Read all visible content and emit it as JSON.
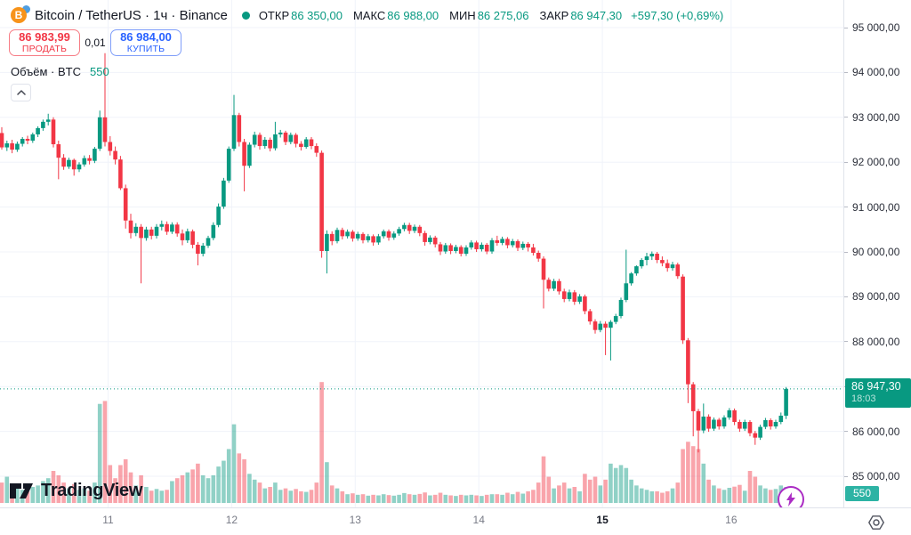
{
  "header": {
    "symbol_title": "Bitcoin / TetherUS · 1ч · Binance",
    "ohlc": {
      "open_label": "ОТКР",
      "open": "86 350,00",
      "high_label": "МАКС",
      "high": "86 988,00",
      "low_label": "МИН",
      "low": "86 275,06",
      "close_label": "ЗАКР",
      "close": "86 947,30",
      "change": "+597,30 (+0,69%)"
    },
    "sell_button": {
      "price": "86 983,99",
      "label": "ПРОДАТЬ"
    },
    "spread": "0,01",
    "buy_button": {
      "price": "86 984,00",
      "label": "КУПИТЬ"
    },
    "volume_row": {
      "label": "Объём · BTC",
      "value": "550"
    }
  },
  "watermark": "TradingView",
  "price_axis": {
    "labels": [
      {
        "text": "95 000,00",
        "price": 95000
      },
      {
        "text": "94 000,00",
        "price": 94000
      },
      {
        "text": "93 000,00",
        "price": 93000
      },
      {
        "text": "92 000,00",
        "price": 92000
      },
      {
        "text": "91 000,00",
        "price": 91000
      },
      {
        "text": "90 000,00",
        "price": 90000
      },
      {
        "text": "89 000,00",
        "price": 89000
      },
      {
        "text": "88 000,00",
        "price": 88000
      },
      {
        "text": "87 000,00",
        "price": 87000
      },
      {
        "text": "86 000,00",
        "price": 86000
      },
      {
        "text": "85 000,00",
        "price": 85000
      }
    ],
    "last_price_tag": {
      "text": "86 947,30",
      "countdown": "18:03",
      "price": 86947.3
    },
    "volume_tag": "550"
  },
  "time_axis": {
    "ticks": [
      {
        "label": "11",
        "i": 20.6,
        "bold": false
      },
      {
        "label": "12",
        "i": 44.55,
        "bold": false
      },
      {
        "label": "13",
        "i": 68.5,
        "bold": false
      },
      {
        "label": "14",
        "i": 92.45,
        "bold": false
      },
      {
        "label": "15",
        "i": 116.4,
        "bold": true
      },
      {
        "label": "16",
        "i": 141.35,
        "bold": false
      }
    ]
  },
  "colors": {
    "up": "#089981",
    "down": "#f23645",
    "vol_up": "rgba(8,153,129,0.45)",
    "vol_down": "rgba(242,54,69,0.45)",
    "grid": "#f0f3fa",
    "buy": "#2962ff",
    "sell": "#f23645",
    "flash": "#ab2cc4"
  },
  "chart_data": {
    "type": "candlestick",
    "symbol": "Bitcoin / TetherUS",
    "interval": "1ч",
    "exchange": "Binance",
    "last_price": 86947.3,
    "last_volume": 550,
    "ohlc_summary": {
      "open": 86350,
      "high": 86988,
      "low": 86275.06,
      "close": 86947.3,
      "change": "+597,30",
      "change_pct": "+0,69%"
    },
    "y_gridlines": [
      85000,
      86000,
      87000,
      88000,
      89000,
      90000,
      91000,
      92000,
      93000,
      94000,
      95000
    ],
    "x_tick_days": [
      "11",
      "12",
      "13",
      "14",
      "15",
      "16"
    ],
    "candles": [
      [
        92650,
        92780,
        92280,
        92330,
        700
      ],
      [
        92330,
        92480,
        92250,
        92420,
        900
      ],
      [
        92420,
        92500,
        92200,
        92280,
        600
      ],
      [
        92280,
        92460,
        92230,
        92410,
        500
      ],
      [
        92410,
        92560,
        92350,
        92520,
        450
      ],
      [
        92520,
        92590,
        92400,
        92480,
        400
      ],
      [
        92480,
        92660,
        92430,
        92620,
        550
      ],
      [
        92620,
        92800,
        92560,
        92760,
        600
      ],
      [
        92760,
        92950,
        92700,
        92900,
        750
      ],
      [
        92900,
        93080,
        92820,
        92950,
        850
      ],
      [
        92950,
        93000,
        92330,
        92400,
        1100
      ],
      [
        92400,
        92480,
        91620,
        92100,
        950
      ],
      [
        92100,
        92180,
        91830,
        91900,
        700
      ],
      [
        91900,
        92100,
        91850,
        92050,
        500
      ],
      [
        92050,
        92080,
        91700,
        91840,
        650
      ],
      [
        91840,
        92000,
        91780,
        91950,
        450
      ],
      [
        91950,
        92150,
        91900,
        92090,
        500
      ],
      [
        92090,
        92160,
        91950,
        92030,
        420
      ],
      [
        92030,
        92340,
        91980,
        92300,
        700
      ],
      [
        92300,
        93150,
        92250,
        93000,
        3400
      ],
      [
        93000,
        94430,
        92350,
        92450,
        3500
      ],
      [
        92450,
        92580,
        92150,
        92250,
        1300
      ],
      [
        92250,
        92350,
        91950,
        92060,
        850
      ],
      [
        92060,
        92140,
        91380,
        91420,
        1300
      ],
      [
        91420,
        91500,
        90520,
        90700,
        1500
      ],
      [
        90700,
        90850,
        90300,
        90420,
        1050
      ],
      [
        90420,
        90640,
        90350,
        90560,
        600
      ],
      [
        90560,
        90620,
        89300,
        90310,
        950
      ],
      [
        90310,
        90560,
        90250,
        90500,
        550
      ],
      [
        90500,
        90560,
        90280,
        90360,
        420
      ],
      [
        90360,
        90620,
        90300,
        90560,
        480
      ],
      [
        90560,
        90700,
        90480,
        90620,
        420
      ],
      [
        90620,
        90680,
        90380,
        90450,
        450
      ],
      [
        90450,
        90660,
        90400,
        90610,
        750
      ],
      [
        90610,
        90660,
        90340,
        90410,
        850
      ],
      [
        90410,
        90500,
        90150,
        90260,
        950
      ],
      [
        90260,
        90520,
        90200,
        90460,
        1050
      ],
      [
        90460,
        90500,
        90080,
        90160,
        1150
      ],
      [
        90160,
        90220,
        89700,
        89960,
        1350
      ],
      [
        89960,
        90200,
        89900,
        90140,
        950
      ],
      [
        90140,
        90360,
        90090,
        90310,
        850
      ],
      [
        90310,
        90660,
        90260,
        90600,
        950
      ],
      [
        90600,
        91080,
        90550,
        91010,
        1250
      ],
      [
        91010,
        91650,
        90960,
        91590,
        1450
      ],
      [
        91590,
        92350,
        91540,
        92300,
        1850
      ],
      [
        92300,
        93500,
        92250,
        93050,
        2700
      ],
      [
        93050,
        93100,
        92350,
        92450,
        1700
      ],
      [
        92450,
        92520,
        91350,
        91920,
        1500
      ],
      [
        91920,
        92440,
        91870,
        92390,
        1000
      ],
      [
        92390,
        92680,
        92330,
        92610,
        800
      ],
      [
        92610,
        92660,
        92280,
        92360,
        700
      ],
      [
        92360,
        92560,
        92300,
        92500,
        500
      ],
      [
        92500,
        92550,
        92240,
        92310,
        550
      ],
      [
        92310,
        92900,
        92260,
        92620,
        700
      ],
      [
        92620,
        92720,
        92550,
        92660,
        450
      ],
      [
        92660,
        92700,
        92380,
        92450,
        500
      ],
      [
        92450,
        92660,
        92400,
        92610,
        420
      ],
      [
        92610,
        92650,
        92330,
        92410,
        480
      ],
      [
        92410,
        92470,
        92260,
        92340,
        400
      ],
      [
        92340,
        92560,
        92300,
        92510,
        380
      ],
      [
        92510,
        92560,
        92290,
        92360,
        450
      ],
      [
        92360,
        92420,
        92120,
        92210,
        700
      ],
      [
        92210,
        92260,
        89870,
        90020,
        4150
      ],
      [
        90020,
        90480,
        89520,
        90400,
        1400
      ],
      [
        90400,
        90460,
        90150,
        90240,
        600
      ],
      [
        90240,
        90540,
        90190,
        90490,
        500
      ],
      [
        90490,
        90540,
        90280,
        90350,
        400
      ],
      [
        90350,
        90500,
        90300,
        90450,
        300
      ],
      [
        90450,
        90490,
        90230,
        90300,
        330
      ],
      [
        90300,
        90450,
        90250,
        90400,
        280
      ],
      [
        90400,
        90440,
        90190,
        90260,
        300
      ],
      [
        90260,
        90400,
        90210,
        90350,
        250
      ],
      [
        90350,
        90390,
        90140,
        90210,
        280
      ],
      [
        90210,
        90400,
        90160,
        90350,
        260
      ],
      [
        90350,
        90500,
        90300,
        90460,
        300
      ],
      [
        90460,
        90500,
        90250,
        90320,
        270
      ],
      [
        90320,
        90460,
        90270,
        90410,
        250
      ],
      [
        90410,
        90560,
        90360,
        90510,
        280
      ],
      [
        90510,
        90650,
        90460,
        90600,
        340
      ],
      [
        90600,
        90650,
        90400,
        90470,
        300
      ],
      [
        90470,
        90610,
        90420,
        90560,
        280
      ],
      [
        90560,
        90600,
        90350,
        90420,
        310
      ],
      [
        90420,
        90470,
        90140,
        90220,
        360
      ],
      [
        90220,
        90370,
        90170,
        90320,
        260
      ],
      [
        90320,
        90360,
        90100,
        90170,
        280
      ],
      [
        90170,
        90220,
        89930,
        90010,
        350
      ],
      [
        90010,
        90200,
        89960,
        90150,
        280
      ],
      [
        90150,
        90190,
        89950,
        90020,
        260
      ],
      [
        90020,
        90160,
        89970,
        90110,
        240
      ],
      [
        90110,
        90150,
        89900,
        89960,
        280
      ],
      [
        89960,
        90150,
        89910,
        90100,
        260
      ],
      [
        90100,
        90260,
        90050,
        90210,
        280
      ],
      [
        90210,
        90250,
        90000,
        90060,
        260
      ],
      [
        90060,
        90210,
        90010,
        90160,
        240
      ],
      [
        90160,
        90200,
        89950,
        90010,
        280
      ],
      [
        90010,
        90310,
        89960,
        90260,
        300
      ],
      [
        90260,
        90360,
        90140,
        90200,
        300
      ],
      [
        90200,
        90340,
        90150,
        90290,
        280
      ],
      [
        90290,
        90330,
        90080,
        90150,
        350
      ],
      [
        90150,
        90290,
        90100,
        90240,
        300
      ],
      [
        90240,
        90280,
        90020,
        90090,
        380
      ],
      [
        90090,
        90230,
        90040,
        90180,
        320
      ],
      [
        90180,
        90220,
        90010,
        90100,
        400
      ],
      [
        90100,
        90180,
        89920,
        89980,
        450
      ],
      [
        89980,
        90030,
        89780,
        89850,
        700
      ],
      [
        89850,
        89900,
        88740,
        89380,
        1600
      ],
      [
        89380,
        89430,
        89120,
        89180,
        900
      ],
      [
        89180,
        89400,
        89130,
        89350,
        500
      ],
      [
        89350,
        89400,
        89050,
        89120,
        600
      ],
      [
        89120,
        89180,
        88880,
        88950,
        700
      ],
      [
        88950,
        89160,
        88900,
        89100,
        500
      ],
      [
        89100,
        89150,
        88820,
        88890,
        550
      ],
      [
        88890,
        89060,
        88840,
        89010,
        400
      ],
      [
        89010,
        89050,
        88610,
        88680,
        1000
      ],
      [
        88680,
        88730,
        88380,
        88450,
        800
      ],
      [
        88450,
        88500,
        88180,
        88260,
        900
      ],
      [
        88260,
        88460,
        88210,
        88400,
        600
      ],
      [
        88400,
        88450,
        87700,
        88310,
        800
      ],
      [
        88310,
        88480,
        87580,
        88440,
        1350
      ],
      [
        88440,
        88620,
        88390,
        88570,
        1200
      ],
      [
        88570,
        88980,
        88520,
        88930,
        1300
      ],
      [
        88930,
        90050,
        88880,
        89300,
        1200
      ],
      [
        89300,
        89550,
        89250,
        89520,
        800
      ],
      [
        89520,
        89700,
        89470,
        89680,
        600
      ],
      [
        89680,
        89860,
        89630,
        89820,
        500
      ],
      [
        89820,
        89980,
        89700,
        89900,
        450
      ],
      [
        89900,
        90010,
        89820,
        89960,
        400
      ],
      [
        89960,
        90000,
        89750,
        89820,
        400
      ],
      [
        89820,
        89900,
        89680,
        89750,
        350
      ],
      [
        89750,
        89830,
        89560,
        89640,
        400
      ],
      [
        89640,
        89780,
        89580,
        89720,
        500
      ],
      [
        89720,
        89760,
        89400,
        89460,
        700
      ],
      [
        89450,
        89500,
        87950,
        88030,
        1850
      ],
      [
        88030,
        88080,
        86630,
        87050,
        2100
      ],
      [
        87050,
        87100,
        85890,
        86450,
        1950
      ],
      [
        86450,
        86500,
        85530,
        86020,
        1850
      ],
      [
        86020,
        86620,
        85960,
        86330,
        1350
      ],
      [
        86330,
        86380,
        85990,
        86060,
        800
      ],
      [
        86060,
        86310,
        86010,
        86260,
        600
      ],
      [
        86260,
        86300,
        86040,
        86110,
        500
      ],
      [
        86110,
        86360,
        86060,
        86310,
        450
      ],
      [
        86310,
        86520,
        86260,
        86470,
        520
      ],
      [
        86470,
        86510,
        86140,
        86210,
        560
      ],
      [
        86210,
        86260,
        85990,
        86060,
        620
      ],
      [
        86060,
        86260,
        86010,
        86210,
        420
      ],
      [
        86210,
        86250,
        85890,
        85960,
        1100
      ],
      [
        85960,
        86010,
        85700,
        85860,
        900
      ],
      [
        85860,
        86150,
        85810,
        86100,
        600
      ],
      [
        86100,
        86300,
        86050,
        86250,
        500
      ],
      [
        86250,
        86290,
        86040,
        86110,
        450
      ],
      [
        86110,
        86260,
        86060,
        86210,
        480
      ],
      [
        86210,
        86420,
        86160,
        86350,
        600
      ],
      [
        86350,
        86988,
        86275,
        86947,
        550
      ]
    ]
  }
}
